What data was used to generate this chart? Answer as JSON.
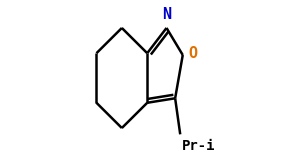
{
  "bg_color": "#ffffff",
  "bond_color": "#000000",
  "N_color": "#0000cc",
  "O_color": "#e07000",
  "label_color": "#000000",
  "line_width": 1.8,
  "N_label": "N",
  "O_label": "O",
  "Pr_label": "Pr-i",
  "font_size_atom": 11,
  "font_size_sub": 10,
  "figsize": [
    2.93,
    1.65
  ],
  "dpi": 100
}
